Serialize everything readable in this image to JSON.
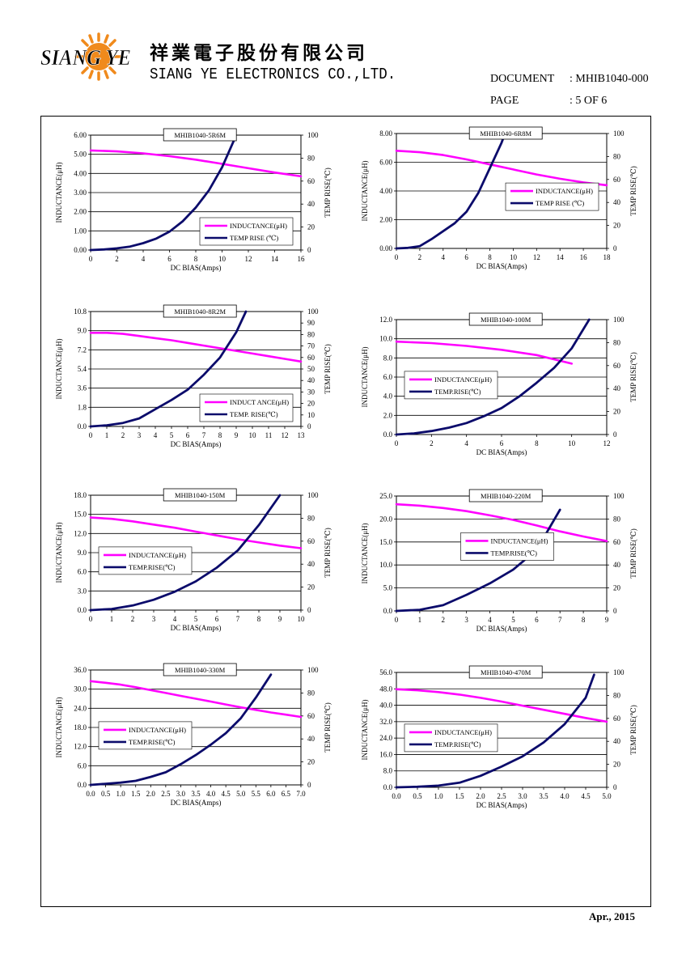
{
  "header": {
    "company_cn": "祥業電子股份有限公司",
    "company_en": "SIANG YE ELECTRONICS CO.,LTD.",
    "logo_text": "SIANG YE",
    "document_label": "DOCUMENT",
    "document_value": ": MHIB1040-000",
    "page_label": "PAGE",
    "page_value": ": 5 OF 6"
  },
  "footer": {
    "date": "Apr., 2015"
  },
  "colors": {
    "inductance": "#ff00ff",
    "temp_rise": "#0b0b6b",
    "grid": "#000000"
  },
  "chart_data": [
    {
      "type": "line",
      "title": "MHIB1040-5R6M",
      "xlabel": "DC BIAS(Amps)",
      "ylabel": "INDUCTANCE(μH)",
      "y2label": "TEMP RISE(℃)",
      "xlim": [
        0,
        16
      ],
      "ylim": [
        0,
        6
      ],
      "y2lim": [
        0,
        100
      ],
      "xticks": [
        "0",
        "2",
        "4",
        "6",
        "8",
        "10",
        "12",
        "14",
        "16"
      ],
      "yticks": [
        "0.00",
        "1.00",
        "2.00",
        "3.00",
        "4.00",
        "5.00",
        "6.00"
      ],
      "y2ticks": [
        "0",
        "20",
        "40",
        "60",
        "80",
        "100"
      ],
      "legend": [
        "INDUCTANCE(μH)",
        "TEMP RISE (℃)"
      ],
      "legend_pos": "bottom-right",
      "series": [
        {
          "name": "INDUCTANCE(μH)",
          "axis": "left",
          "x": [
            0,
            2,
            4,
            6,
            8,
            10,
            12,
            14,
            16
          ],
          "y": [
            5.2,
            5.15,
            5.05,
            4.9,
            4.72,
            4.5,
            4.27,
            4.05,
            3.85
          ]
        },
        {
          "name": "TEMP RISE (℃)",
          "axis": "right",
          "x": [
            0,
            1,
            2,
            3,
            4,
            5,
            6,
            7,
            8,
            9,
            10,
            11
          ],
          "y": [
            0,
            0.5,
            1.5,
            3,
            6,
            10,
            16,
            25,
            37,
            52,
            72,
            98
          ]
        }
      ]
    },
    {
      "type": "line",
      "title": "MHIB1040-6R8M",
      "xlabel": "DC BIAS(Amps)",
      "ylabel": "INDUCTANCE(μH)",
      "y2label": "TEMP RISE(℃)",
      "xlim": [
        0,
        18
      ],
      "ylim": [
        0,
        8
      ],
      "y2lim": [
        0,
        100
      ],
      "xticks": [
        "0",
        "2",
        "4",
        "6",
        "8",
        "10",
        "12",
        "14",
        "16",
        "18"
      ],
      "yticks": [
        "0.00",
        "2.00",
        "4.00",
        "6.00",
        "8.00"
      ],
      "y2ticks": [
        "0",
        "20",
        "40",
        "60",
        "80",
        "100"
      ],
      "legend": [
        "INDUCTANCE(μH)",
        "TEMP RISE (℃)"
      ],
      "legend_pos": "center-right",
      "series": [
        {
          "name": "INDUCTANCE(μH)",
          "axis": "left",
          "x": [
            0,
            2,
            4,
            6,
            8,
            10,
            12,
            14,
            16,
            18
          ],
          "y": [
            6.8,
            6.7,
            6.5,
            6.2,
            5.85,
            5.5,
            5.15,
            4.85,
            4.6,
            4.4
          ]
        },
        {
          "name": "TEMP RISE (℃)",
          "axis": "right",
          "x": [
            0,
            1,
            2,
            3,
            4,
            5,
            6,
            7,
            8,
            9,
            9.3
          ],
          "y": [
            0,
            0.5,
            2,
            8,
            15,
            22,
            32,
            48,
            70,
            92,
            100
          ]
        }
      ]
    },
    {
      "type": "line",
      "title": "MHIB1040-8R2M",
      "xlabel": "DC BIAS(Amps)",
      "ylabel": "INDUCTANCE(μH)",
      "y2label": "TEMP RISE(℃)",
      "xlim": [
        0,
        13
      ],
      "ylim": [
        0,
        10.8
      ],
      "y2lim": [
        0,
        100
      ],
      "xticks": [
        "0",
        "1",
        "2",
        "3",
        "4",
        "5",
        "6",
        "7",
        "8",
        "9",
        "10",
        "11",
        "12",
        "13"
      ],
      "yticks": [
        "0.0",
        "1.8",
        "3.6",
        "5.4",
        "7.2",
        "9.0",
        "10.8"
      ],
      "y2ticks": [
        "0",
        "10",
        "20",
        "30",
        "40",
        "50",
        "60",
        "70",
        "80",
        "90",
        "100"
      ],
      "legend": [
        "INDUCT ANCE(μH)",
        "TEMP. RISE(℃)"
      ],
      "legend_pos": "bottom-right",
      "series": [
        {
          "name": "INDUCT ANCE(μH)",
          "axis": "left",
          "x": [
            0,
            1,
            2,
            3,
            4,
            5,
            6,
            7,
            8,
            9,
            10,
            11,
            12,
            13
          ],
          "y": [
            8.8,
            8.8,
            8.7,
            8.5,
            8.3,
            8.1,
            7.85,
            7.6,
            7.35,
            7.1,
            6.85,
            6.6,
            6.35,
            6.1
          ]
        },
        {
          "name": "TEMP. RISE(℃)",
          "axis": "right",
          "x": [
            0,
            1,
            2,
            3,
            4,
            5,
            6,
            7,
            8,
            9,
            9.6
          ],
          "y": [
            0,
            1,
            3,
            7,
            15,
            23,
            32,
            45,
            60,
            82,
            100
          ]
        }
      ]
    },
    {
      "type": "line",
      "title": "MHIB1040-100M",
      "xlabel": "DC BIAS(Amps)",
      "ylabel": "INDUCTANCE(μH)",
      "y2label": "TEMP RISE(℃)",
      "xlim": [
        0,
        12
      ],
      "ylim": [
        0,
        12
      ],
      "y2lim": [
        0,
        100
      ],
      "xticks": [
        "0",
        "2",
        "4",
        "6",
        "8",
        "10",
        "12"
      ],
      "yticks": [
        "0.0",
        "2.0",
        "4.0",
        "6.0",
        "8.0",
        "10.0",
        "12.0"
      ],
      "y2ticks": [
        "0",
        "20",
        "40",
        "60",
        "80",
        "100"
      ],
      "legend": [
        "INDUCTANCE(μH)",
        "TEMP.RISE(℃)"
      ],
      "legend_pos": "center-left",
      "series": [
        {
          "name": "INDUCTANCE(μH)",
          "axis": "left",
          "x": [
            0,
            2,
            4,
            6,
            8,
            10
          ],
          "y": [
            9.7,
            9.55,
            9.25,
            8.85,
            8.3,
            7.4
          ]
        },
        {
          "name": "TEMP.RISE(℃)",
          "axis": "right",
          "x": [
            0,
            1,
            2,
            3,
            4,
            5,
            6,
            7,
            8,
            9,
            10,
            11
          ],
          "y": [
            0,
            1,
            3,
            6,
            10,
            16,
            23,
            33,
            45,
            58,
            75,
            100
          ]
        }
      ]
    },
    {
      "type": "line",
      "title": "MHIB1040-150M",
      "xlabel": "DC BIAS(Amps)",
      "ylabel": "INDUCTANCE(μH)",
      "y2label": "TEMP RISE(℃)",
      "xlim": [
        0,
        10
      ],
      "ylim": [
        0,
        18
      ],
      "y2lim": [
        0,
        100
      ],
      "xticks": [
        "0",
        "1",
        "2",
        "3",
        "4",
        "5",
        "6",
        "7",
        "8",
        "9",
        "10"
      ],
      "yticks": [
        "0.0",
        "3.0",
        "6.0",
        "9.0",
        "12.0",
        "15.0",
        "18.0"
      ],
      "y2ticks": [
        "0",
        "20",
        "40",
        "60",
        "80",
        "100"
      ],
      "legend": [
        "INDUCTANCE(μH)",
        "TEMP.RISE(℃)"
      ],
      "legend_pos": "center-left",
      "series": [
        {
          "name": "INDUCTANCE(μH)",
          "axis": "left",
          "x": [
            0,
            1,
            2,
            3,
            4,
            5,
            6,
            7,
            8,
            9,
            10
          ],
          "y": [
            14.5,
            14.3,
            13.9,
            13.4,
            12.9,
            12.3,
            11.7,
            11.1,
            10.6,
            10.1,
            9.7
          ]
        },
        {
          "name": "TEMP.RISE(℃)",
          "axis": "right",
          "x": [
            0,
            1,
            2,
            3,
            4,
            5,
            6,
            7,
            8,
            9
          ],
          "y": [
            0,
            1,
            4,
            9,
            16,
            25,
            37,
            52,
            74,
            100
          ]
        }
      ]
    },
    {
      "type": "line",
      "title": "MHIB1040-220M",
      "xlabel": "DC BIAS(Amps)",
      "ylabel": "INDUCTANCE(μH)",
      "y2label": "TEMP RISE(℃)",
      "xlim": [
        0,
        9
      ],
      "ylim": [
        0,
        25
      ],
      "y2lim": [
        0,
        100
      ],
      "xticks": [
        "0",
        "1",
        "2",
        "3",
        "4",
        "5",
        "6",
        "7",
        "8",
        "9"
      ],
      "yticks": [
        "0.0",
        "5.0",
        "10.0",
        "15.0",
        "20.0",
        "25.0"
      ],
      "y2ticks": [
        "0",
        "20",
        "40",
        "60",
        "80",
        "100"
      ],
      "legend": [
        "INDUCTANCE(μH)",
        "TEMP.RISE(℃)"
      ],
      "legend_pos": "center",
      "series": [
        {
          "name": "INDUCTANCE(μH)",
          "axis": "left",
          "x": [
            0,
            1,
            2,
            3,
            4,
            5,
            6,
            7,
            8,
            9
          ],
          "y": [
            23.2,
            22.9,
            22.4,
            21.7,
            20.8,
            19.8,
            18.6,
            17.3,
            16.2,
            15.2
          ]
        },
        {
          "name": "TEMP.RISE(℃)",
          "axis": "right",
          "x": [
            0,
            1,
            2,
            3,
            4,
            5,
            6,
            7
          ],
          "y": [
            0,
            1,
            5,
            14,
            24,
            36,
            53,
            88
          ]
        }
      ]
    },
    {
      "type": "line",
      "title": "MHIB1040-330M",
      "xlabel": "DC BIAS(Amps)",
      "ylabel": "INDUCTANCE(μH)",
      "y2label": "TEMP RISE(℃)",
      "xlim": [
        0,
        7
      ],
      "ylim": [
        0,
        36
      ],
      "y2lim": [
        0,
        100
      ],
      "xticks": [
        "0.0",
        "0.5",
        "1.0",
        "1.5",
        "2.0",
        "2.5",
        "3.0",
        "3.5",
        "4.0",
        "4.5",
        "5.0",
        "5.5",
        "6.0",
        "6.5",
        "7.0"
      ],
      "yticks": [
        "0.0",
        "6.0",
        "12.0",
        "18.0",
        "24.0",
        "30.0",
        "36.0"
      ],
      "y2ticks": [
        "0",
        "20",
        "40",
        "60",
        "80",
        "100"
      ],
      "legend": [
        "INDUCTANCE(μH)",
        "TEMP.RISE(℃)"
      ],
      "legend_pos": "center-left",
      "series": [
        {
          "name": "INDUCTANCE(μH)",
          "axis": "left",
          "x": [
            0,
            0.5,
            1,
            1.5,
            2,
            2.5,
            3,
            3.5,
            4,
            4.5,
            5,
            5.5,
            6,
            6.5,
            7
          ],
          "y": [
            32.5,
            32,
            31.4,
            30.6,
            29.7,
            28.8,
            27.9,
            27,
            26.1,
            25.2,
            24.3,
            23.5,
            22.7,
            22,
            21.3
          ]
        },
        {
          "name": "TEMP.RISE(℃)",
          "axis": "right",
          "x": [
            0,
            0.5,
            1,
            1.5,
            2,
            2.5,
            3,
            3.5,
            4,
            4.5,
            5,
            5.5,
            6
          ],
          "y": [
            0,
            1,
            2,
            3.5,
            7,
            11,
            18,
            26,
            35,
            45,
            58,
            76,
            96
          ]
        }
      ]
    },
    {
      "type": "line",
      "title": "MHIB1040-470M",
      "xlabel": "DC BIAS(Amps)",
      "ylabel": "INDUCTANCE(μH)",
      "y2label": "TEMP RISE(℃)",
      "xlim": [
        0,
        5
      ],
      "ylim": [
        0,
        56
      ],
      "y2lim": [
        0,
        100
      ],
      "xticks": [
        "0.0",
        "0.5",
        "1.0",
        "1.5",
        "2.0",
        "2.5",
        "3.0",
        "3.5",
        "4.0",
        "4.5",
        "5.0"
      ],
      "yticks": [
        "0.0",
        "8.0",
        "16.0",
        "24.0",
        "32.0",
        "40.0",
        "48.0",
        "56.0"
      ],
      "y2ticks": [
        "0",
        "20",
        "40",
        "60",
        "80",
        "100"
      ],
      "legend": [
        "INDUCTANCE(μH)",
        "TEMP.RISE(℃)"
      ],
      "legend_pos": "center-left",
      "series": [
        {
          "name": "INDUCTANCE(μH)",
          "axis": "left",
          "x": [
            0,
            0.5,
            1,
            1.5,
            2,
            2.5,
            3,
            3.5,
            4,
            4.5,
            5
          ],
          "y": [
            47.8,
            47.3,
            46.4,
            45.2,
            43.6,
            41.8,
            39.8,
            37.8,
            35.8,
            33.8,
            32
          ]
        },
        {
          "name": "TEMP.RISE(℃)",
          "axis": "right",
          "x": [
            0,
            0.5,
            1,
            1.5,
            2,
            2.5,
            3,
            3.5,
            4,
            4.5,
            4.7
          ],
          "y": [
            0,
            0.5,
            1.5,
            4,
            10,
            18,
            27,
            39,
            55,
            78,
            98
          ]
        }
      ]
    }
  ]
}
